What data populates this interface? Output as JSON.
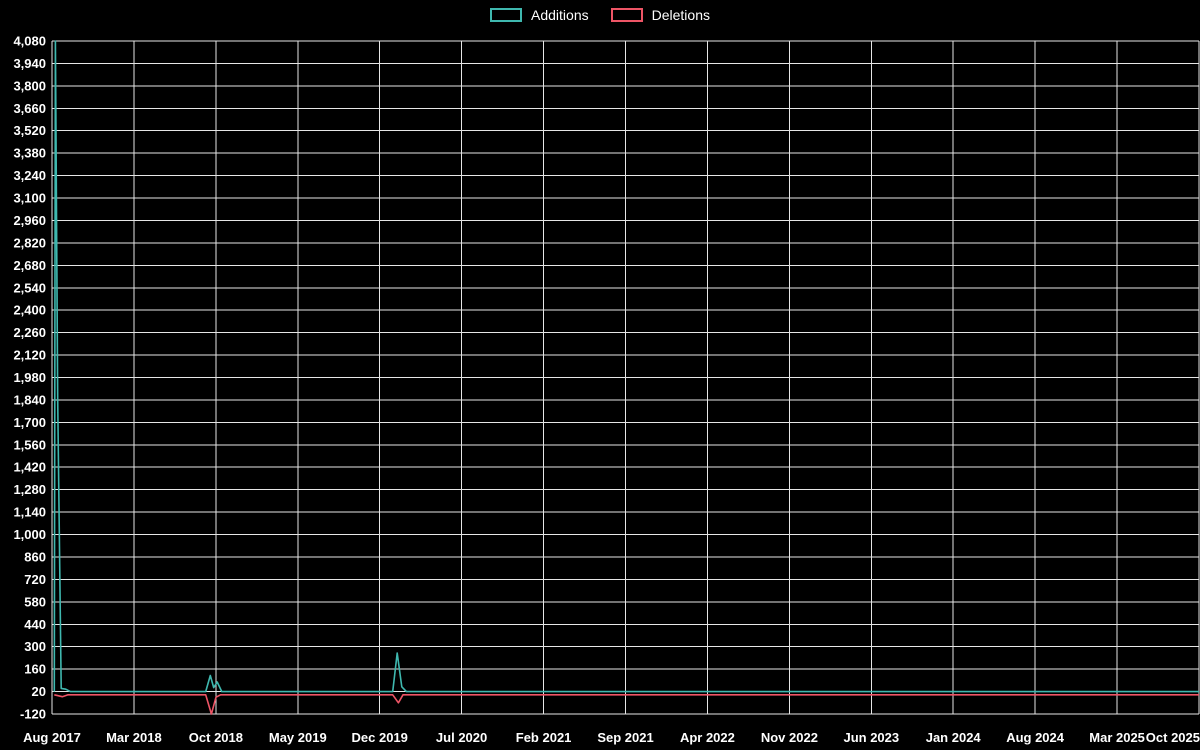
{
  "chart_data": {
    "type": "line",
    "title": "",
    "legend_position": "top-center",
    "grid": true,
    "background_color": "#000000",
    "grid_color": "#e6e6e6",
    "text_color": "#ffffff",
    "legend": [
      {
        "label": "Additions",
        "color": "#3fb8af"
      },
      {
        "label": "Deletions",
        "color": "#ee5566"
      }
    ],
    "x_tick_labels": [
      "Aug 2017",
      "Mar 2018",
      "Oct 2018",
      "May 2019",
      "Dec 2019",
      "Jul 2020",
      "Feb 2021",
      "Sep 2021",
      "Apr 2022",
      "Nov 2022",
      "Jun 2023",
      "Jan 2024",
      "Aug 2024",
      "Mar 2025",
      "Oct 2025"
    ],
    "y_ticks": [
      4080,
      3940,
      3800,
      3660,
      3520,
      3380,
      3240,
      3100,
      2960,
      2820,
      2680,
      2540,
      2400,
      2260,
      2120,
      1980,
      1840,
      1700,
      1560,
      1420,
      1280,
      1140,
      1000,
      860,
      720,
      580,
      440,
      300,
      160,
      20,
      -120
    ],
    "ylim": [
      -120,
      4080
    ],
    "series": [
      {
        "name": "Additions",
        "color": "#3fb8af",
        "points": [
          {
            "x": 0.002,
            "y": 20
          },
          {
            "x": 0.003,
            "y": 4080
          },
          {
            "x": 0.005,
            "y": 1840
          },
          {
            "x": 0.008,
            "y": 40
          },
          {
            "x": 0.012,
            "y": 35
          },
          {
            "x": 0.016,
            "y": 20
          },
          {
            "x": 0.134,
            "y": 20
          },
          {
            "x": 0.138,
            "y": 120
          },
          {
            "x": 0.141,
            "y": 45
          },
          {
            "x": 0.144,
            "y": 80
          },
          {
            "x": 0.148,
            "y": 20
          },
          {
            "x": 0.297,
            "y": 20
          },
          {
            "x": 0.301,
            "y": 260
          },
          {
            "x": 0.305,
            "y": 50
          },
          {
            "x": 0.309,
            "y": 20
          },
          {
            "x": 1.0,
            "y": 20
          }
        ]
      },
      {
        "name": "Deletions",
        "color": "#ee5566",
        "points": [
          {
            "x": 0.002,
            "y": 0
          },
          {
            "x": 0.009,
            "y": -12
          },
          {
            "x": 0.014,
            "y": 0
          },
          {
            "x": 0.134,
            "y": 0
          },
          {
            "x": 0.139,
            "y": -120
          },
          {
            "x": 0.143,
            "y": -15
          },
          {
            "x": 0.147,
            "y": 0
          },
          {
            "x": 0.297,
            "y": 0
          },
          {
            "x": 0.302,
            "y": -50
          },
          {
            "x": 0.306,
            "y": 0
          },
          {
            "x": 1.0,
            "y": 0
          }
        ]
      }
    ]
  }
}
